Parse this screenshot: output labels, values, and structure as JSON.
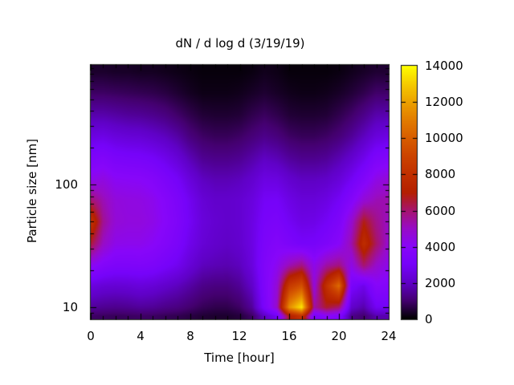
{
  "figure": {
    "background_color": "#ffffff",
    "frame_color": "#000000"
  },
  "chart_data": {
    "type": "heatmap",
    "title": "dN / d log d (3/19/19)",
    "xlabel": "Time [hour]",
    "ylabel": "Particle size [nm]",
    "x_range": [
      0,
      24
    ],
    "y_range": [
      8,
      950
    ],
    "y_scale": "log",
    "grid_lines": "off",
    "x_ticks": [
      "0",
      "4",
      "8",
      "12",
      "16",
      "20",
      "24"
    ],
    "x_minor_tick_step_hours": 1,
    "y_ticks": [
      "100",
      "10"
    ],
    "colorbar": {
      "min": 0,
      "max": 14000,
      "tick_labels_top_to_bottom": [
        "14000",
        "12000",
        "10000",
        "8000",
        "6000",
        "4000",
        "2000",
        "0"
      ],
      "position": "right"
    },
    "palette": [
      {
        "t": 0.0,
        "color": "#000000"
      },
      {
        "t": 0.0714,
        "color": "#44006F"
      },
      {
        "t": 0.1429,
        "color": "#6001C7"
      },
      {
        "t": 0.2143,
        "color": "#7603F9"
      },
      {
        "t": 0.2857,
        "color": "#8806F9"
      },
      {
        "t": 0.3571,
        "color": "#980CC7"
      },
      {
        "t": 0.4286,
        "color": "#A7146F"
      },
      {
        "t": 0.5,
        "color": "#B42000"
      },
      {
        "t": 0.5714,
        "color": "#C13000"
      },
      {
        "t": 0.6429,
        "color": "#CC4400"
      },
      {
        "t": 0.7143,
        "color": "#D85D00"
      },
      {
        "t": 0.7857,
        "color": "#E27C00"
      },
      {
        "t": 0.8571,
        "color": "#ECA100"
      },
      {
        "t": 0.9286,
        "color": "#F6CC00"
      },
      {
        "t": 1.0,
        "color": "#FFFF00"
      }
    ],
    "grid": {
      "hours": [
        0,
        1,
        2,
        3,
        4,
        5,
        6,
        7,
        8,
        9,
        10,
        11,
        12,
        13,
        14,
        15,
        16,
        17,
        18,
        19,
        20,
        21,
        22,
        23,
        24
      ],
      "sizes_nm": [
        840,
        560,
        370,
        250,
        165,
        110,
        75,
        50,
        33,
        22,
        15,
        10,
        8.5
      ],
      "values": [
        [
          400,
          400,
          350,
          350,
          300,
          300,
          250,
          200,
          150,
          100,
          100,
          100,
          100,
          150,
          250,
          200,
          100,
          100,
          100,
          100,
          150,
          250,
          350,
          450,
          450
        ],
        [
          900,
          900,
          850,
          800,
          750,
          700,
          600,
          450,
          300,
          200,
          200,
          200,
          250,
          350,
          450,
          350,
          250,
          200,
          200,
          250,
          350,
          500,
          700,
          950,
          950
        ],
        [
          1700,
          1700,
          1600,
          1500,
          1450,
          1350,
          1200,
          950,
          700,
          500,
          450,
          450,
          500,
          700,
          850,
          700,
          500,
          450,
          450,
          500,
          700,
          950,
          1300,
          1700,
          1750
        ],
        [
          2500,
          2600,
          2400,
          2300,
          2250,
          2100,
          1900,
          1600,
          1150,
          900,
          800,
          800,
          900,
          1100,
          1300,
          1150,
          900,
          800,
          800,
          900,
          1100,
          1450,
          1900,
          2400,
          2550
        ],
        [
          3400,
          3600,
          3300,
          3200,
          3150,
          3000,
          2700,
          2300,
          1800,
          1400,
          1300,
          1300,
          1400,
          1650,
          1950,
          1800,
          1500,
          1350,
          1350,
          1450,
          1750,
          2150,
          2700,
          3400,
          3600
        ],
        [
          4300,
          4500,
          4100,
          4050,
          4000,
          3800,
          3400,
          3000,
          2400,
          1950,
          1800,
          1800,
          1900,
          2150,
          2550,
          2500,
          2150,
          1950,
          1950,
          2050,
          2350,
          2900,
          3600,
          4400,
          4700
        ],
        [
          6000,
          5200,
          4600,
          4500,
          4450,
          4250,
          3850,
          3400,
          2800,
          2300,
          2100,
          2100,
          2200,
          2450,
          2950,
          3000,
          2600,
          2350,
          2350,
          2550,
          2950,
          3700,
          4700,
          5200,
          5300
        ],
        [
          8200,
          5600,
          4700,
          4550,
          4550,
          4350,
          3950,
          3500,
          2900,
          2400,
          2200,
          2100,
          2200,
          2550,
          3150,
          3300,
          2900,
          2600,
          2650,
          2950,
          3450,
          4800,
          6800,
          5700,
          5000
        ],
        [
          6500,
          5000,
          4300,
          4250,
          4250,
          4050,
          3700,
          3300,
          2700,
          2300,
          2100,
          2000,
          2150,
          2550,
          3350,
          3700,
          3350,
          3050,
          3100,
          3450,
          3950,
          5300,
          7800,
          6100,
          4800
        ],
        [
          4200,
          3700,
          3450,
          3450,
          3500,
          3400,
          3100,
          2800,
          2300,
          1900,
          1800,
          1750,
          1900,
          2450,
          3550,
          4200,
          5200,
          5800,
          4300,
          5400,
          5800,
          4400,
          6000,
          4900,
          4300
        ],
        [
          2500,
          2300,
          2250,
          2300,
          2400,
          2300,
          2100,
          1900,
          1600,
          1300,
          1200,
          1200,
          1450,
          2050,
          3500,
          4700,
          8500,
          9500,
          4600,
          8000,
          10500,
          3200,
          2700,
          3900,
          3700
        ],
        [
          1500,
          1400,
          1350,
          1400,
          1500,
          1450,
          1300,
          1200,
          1000,
          800,
          700,
          700,
          900,
          1500,
          3300,
          4900,
          11500,
          13600,
          5400,
          6600,
          6000,
          2100,
          1700,
          2900,
          2900
        ],
        [
          900,
          850,
          800,
          850,
          900,
          870,
          780,
          720,
          600,
          480,
          420,
          420,
          540,
          900,
          2000,
          2900,
          6900,
          8200,
          3200,
          4000,
          3600,
          1300,
          1000,
          1700,
          1700
        ]
      ]
    }
  }
}
